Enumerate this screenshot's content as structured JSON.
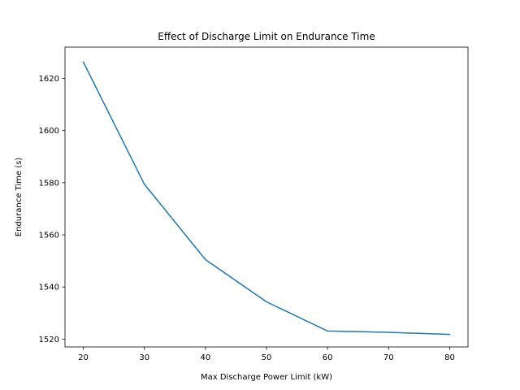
{
  "chart_data": {
    "type": "line",
    "title": "Effect of Discharge Limit on Endurance Time",
    "xlabel": "Max Discharge Power Limit (kW)",
    "ylabel": "Endurance Time (s)",
    "x": [
      20,
      30,
      40,
      50,
      60,
      70,
      80
    ],
    "series": [
      {
        "values": [
          1626.3,
          1579.4,
          1550.5,
          1534.3,
          1523.1,
          1522.6,
          1521.8
        ]
      }
    ],
    "xlim": [
      17,
      83
    ],
    "ylim": [
      1517,
      1632
    ],
    "xticks": [
      20,
      30,
      40,
      50,
      60,
      70,
      80
    ],
    "yticks": [
      1520,
      1540,
      1560,
      1580,
      1600,
      1620
    ],
    "grid": false,
    "line_color": "#1f77b4"
  }
}
